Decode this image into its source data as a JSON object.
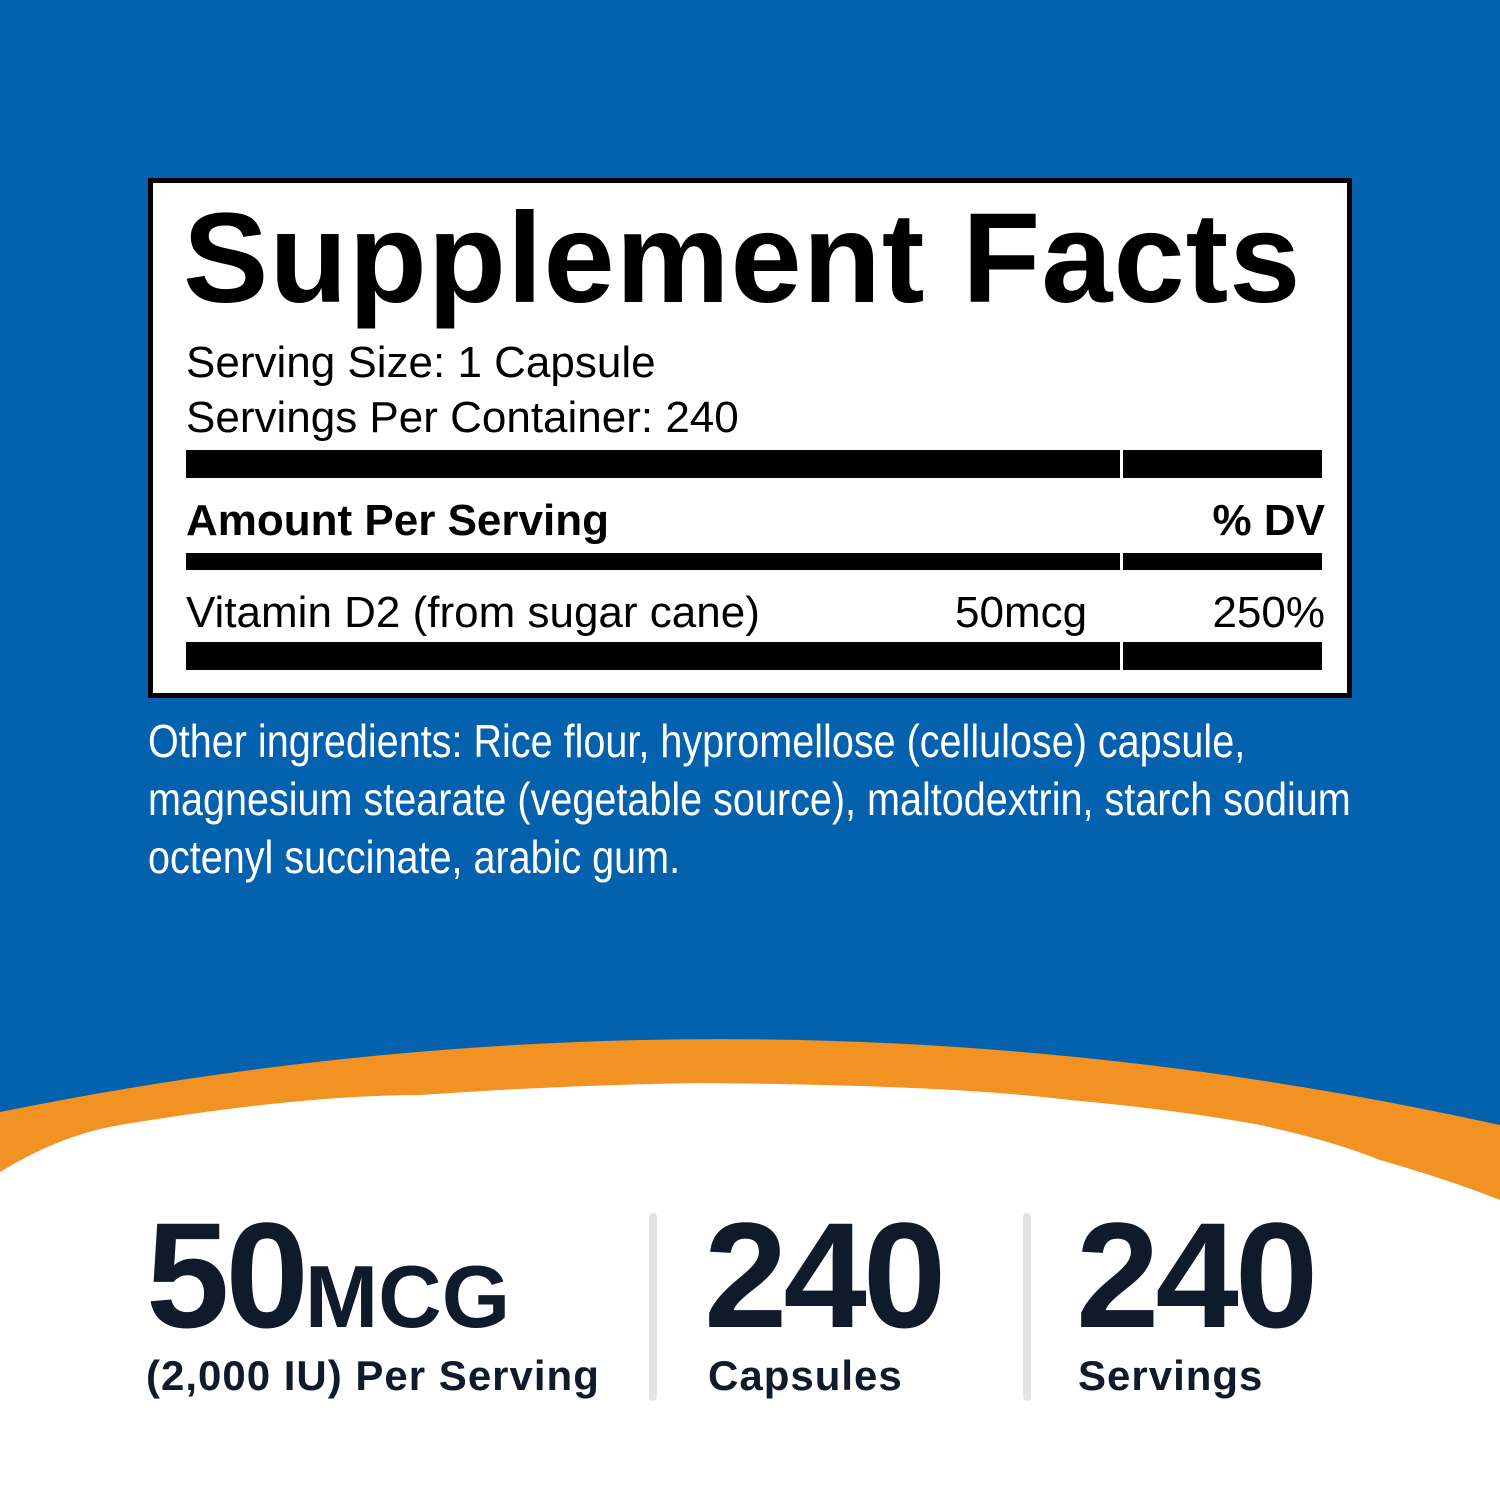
{
  "colors": {
    "background_blue": "#0461ad",
    "accent_orange": "#f29222",
    "text_dark": "#0f1a2a"
  },
  "label": {
    "title": "Supplement Facts",
    "serving_size": "Serving Size: 1 Capsule",
    "servings_per_container": "Servings Per Container: 240",
    "header_amount": "Amount Per Serving",
    "header_dv": "% DV",
    "rows": [
      {
        "name": "Vitamin D2 (from sugar cane)",
        "amount": "50mcg",
        "dv": "250%"
      }
    ]
  },
  "other_ingredients": "Other ingredients: Rice flour, hypromellose (cellulose) capsule, magnesium stearate (vegetable source), maltodextrin, starch sodium octenyl succinate, arabic gum.",
  "stats": [
    {
      "value": "50",
      "unit": "MCG",
      "caption": "(2,000 IU) Per Serving"
    },
    {
      "value": "240",
      "caption": "Capsules"
    },
    {
      "value": "240",
      "caption": "Servings"
    }
  ]
}
